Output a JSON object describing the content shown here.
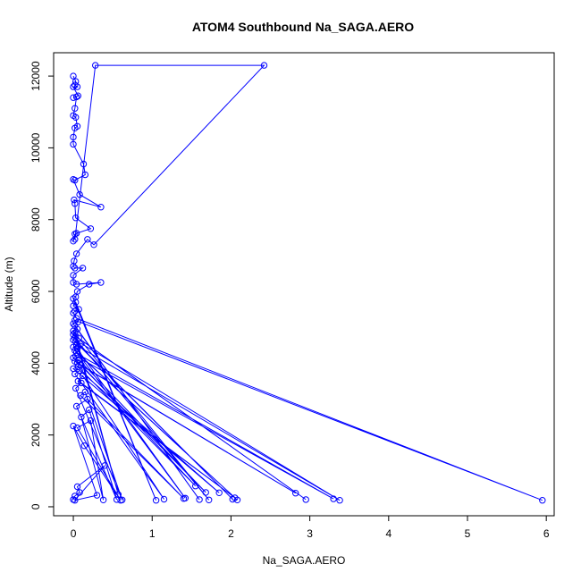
{
  "chart_data": {
    "type": "line",
    "title": "ATOM4 Southbound Na_SAGA.AERO",
    "xlabel": "Na_SAGA.AERO",
    "ylabel": "Altitude (m)",
    "xlim": [
      -0.25,
      6.1
    ],
    "ylim": [
      -250,
      12650
    ],
    "x_ticks": [
      0,
      1,
      2,
      3,
      4,
      5,
      6
    ],
    "y_ticks": [
      0,
      2000,
      4000,
      6000,
      8000,
      10000,
      12000
    ],
    "grid": false,
    "legend": "none",
    "marker": "open-circle",
    "series_color": "#0000ff",
    "series": [
      {
        "x": [
          0.0,
          0.03,
          0.02,
          0.05,
          0.0,
          0.06,
          0.0,
          0.04,
          0.02,
          0.0,
          0.03,
          0.05,
          0.02,
          0.0,
          0.0,
          0.13,
          0.15,
          0.02,
          0.0,
          0.08,
          0.35,
          0.01,
          0.02,
          0.03,
          0.22,
          0.04,
          0.0,
          0.02,
          0.02,
          0.28,
          2.42,
          0.26,
          0.18,
          0.04,
          0.01,
          0.0,
          0.02,
          0.12,
          0.0,
          0.0,
          0.04,
          0.35,
          0.2,
          0.05,
          0.03,
          0.0,
          1.05,
          0.03,
          0.0,
          0.07,
          0.02,
          0.0,
          0.04,
          5.95,
          0.02,
          0.06,
          0.0,
          1.6,
          0.02,
          0.05,
          0.0,
          0.57,
          0.02,
          0.0,
          2.95,
          0.03,
          0.07,
          1.72,
          0.02,
          0.0,
          2.02,
          0.03,
          0.1,
          3.38,
          0.04,
          0.0,
          1.42,
          0.05,
          0.02,
          2.08,
          0.04,
          0.06,
          3.3,
          0.03,
          0.0,
          1.68,
          0.07,
          0.02,
          2.82,
          0.05,
          0.1,
          1.55,
          0.06,
          0.0,
          1.85,
          0.08,
          0.02,
          1.15,
          0.12,
          0.06,
          2.05,
          0.1,
          0.03,
          0.62,
          0.15,
          0.09,
          1.4,
          0.18,
          0.04,
          0.55,
          0.2,
          0.1,
          0.38,
          0.22,
          0.05,
          0.6,
          0.14,
          0.0,
          0.3,
          0.02,
          0.4,
          0.05,
          0.08,
          0.02,
          0.0
        ],
        "y": [
          12000,
          11850,
          11750,
          11700,
          11700,
          11450,
          11400,
          11420,
          11100,
          10900,
          10850,
          10600,
          10550,
          10300,
          10100,
          9550,
          9250,
          9100,
          9120,
          8700,
          8350,
          8550,
          8450,
          8050,
          7750,
          7620,
          7400,
          7600,
          7450,
          12300,
          12300,
          7300,
          7450,
          7050,
          6850,
          6700,
          6650,
          6650,
          6450,
          6250,
          6200,
          6250,
          6200,
          6000,
          5850,
          5800,
          180,
          5700,
          5600,
          5500,
          5450,
          5400,
          5250,
          180,
          5200,
          5150,
          5100,
          200,
          5050,
          4950,
          4900,
          340,
          4850,
          4800,
          200,
          4750,
          4700,
          190,
          4700,
          4650,
          210,
          4600,
          4550,
          180,
          4500,
          4450,
          240,
          4400,
          4350,
          190,
          4300,
          4250,
          220,
          4200,
          4150,
          400,
          4100,
          4050,
          380,
          4000,
          3950,
          580,
          3900,
          3850,
          390,
          3800,
          3700,
          210,
          3650,
          3500,
          250,
          3450,
          3300,
          190,
          3200,
          3100,
          230,
          3000,
          2800,
          200,
          2700,
          2500,
          190,
          2400,
          2200,
          180,
          1700,
          2250,
          320,
          180,
          1150,
          560,
          400,
          300,
          200
        ]
      }
    ]
  }
}
